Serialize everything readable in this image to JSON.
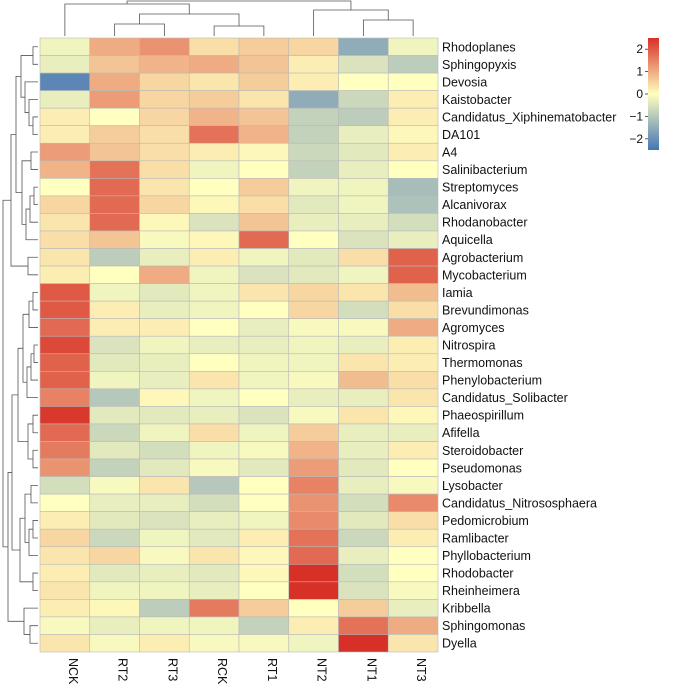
{
  "chart_data": {
    "type": "heatmap",
    "title": "",
    "xlabel": "",
    "ylabel": "",
    "columns": [
      "NCK",
      "RT2",
      "RT3",
      "RCK",
      "RT1",
      "NT2",
      "NT1",
      "NT3"
    ],
    "rows": [
      "Rhodoplanes",
      "Sphingopyxis",
      "Devosia",
      "Kaistobacter",
      "Candidatus_Xiphinematobacter",
      "DA101",
      "A4",
      "Salinibacterium",
      "Streptomyces",
      "Alcanivorax",
      "Rhodanobacter",
      "Aquicella",
      "Agrobacterium",
      "Mycobacterium",
      "Iamia",
      "Brevundimonas",
      "Agromyces",
      "Nitrospira",
      "Thermomonas",
      "Phenylobacterium",
      "Candidatus_Solibacter",
      "Phaeospirillum",
      "Afifella",
      "Steroidobacter",
      "Pseudomonas",
      "Lysobacter",
      "Candidatus_Nitrososphaera",
      "Pedomicrobium",
      "Ramlibacter",
      "Phyllobacterium",
      "Rhodobacter",
      "Rheinheimera",
      "Kribbella",
      "Sphingomonas",
      "Dyella"
    ],
    "values": [
      [
        -0.2,
        1.0,
        1.3,
        0.4,
        0.6,
        0.5,
        -1.5,
        -0.2
      ],
      [
        -0.3,
        0.7,
        0.9,
        1.0,
        0.7,
        0.2,
        -0.5,
        -0.9
      ],
      [
        -2.2,
        1.0,
        0.5,
        0.3,
        0.6,
        0.2,
        0.0,
        0.0
      ],
      [
        -0.3,
        1.2,
        0.5,
        0.6,
        0.3,
        -1.5,
        -0.7,
        0.2
      ],
      [
        0.2,
        0.0,
        0.5,
        0.9,
        0.7,
        -0.8,
        -0.9,
        0.2
      ],
      [
        0.2,
        0.6,
        0.4,
        1.7,
        0.9,
        -0.8,
        -0.3,
        0.1
      ],
      [
        1.2,
        0.7,
        0.4,
        0.2,
        0.1,
        -0.7,
        -0.4,
        0.2
      ],
      [
        0.9,
        1.7,
        0.4,
        -0.2,
        0.0,
        -0.8,
        -0.3,
        0.0
      ],
      [
        0.0,
        1.8,
        0.3,
        0.0,
        0.6,
        -0.2,
        -0.2,
        -1.2
      ],
      [
        0.5,
        1.8,
        0.5,
        0.1,
        0.4,
        -0.4,
        -0.2,
        -1.1
      ],
      [
        0.3,
        1.8,
        0.1,
        -0.5,
        0.7,
        -0.3,
        -0.3,
        -0.6
      ],
      [
        0.4,
        0.7,
        -0.1,
        0.1,
        1.8,
        0.0,
        -0.5,
        -0.3
      ],
      [
        0.3,
        -0.9,
        -0.3,
        0.2,
        -0.2,
        -0.4,
        0.4,
        1.9
      ],
      [
        0.2,
        0.0,
        1.0,
        -0.2,
        -0.5,
        -0.4,
        -0.2,
        1.9
      ],
      [
        2.0,
        -0.2,
        -0.4,
        -0.2,
        0.3,
        0.5,
        0.3,
        0.8
      ],
      [
        2.0,
        0.2,
        -0.3,
        -0.2,
        0.0,
        0.5,
        -0.6,
        0.4
      ],
      [
        1.8,
        0.2,
        0.2,
        0.0,
        -0.3,
        -0.1,
        -0.1,
        1.0
      ],
      [
        2.2,
        -0.5,
        -0.2,
        -0.3,
        -0.3,
        -0.2,
        -0.3,
        0.2
      ],
      [
        1.9,
        -0.4,
        -0.3,
        0.0,
        -0.2,
        -0.2,
        0.3,
        0.2
      ],
      [
        1.9,
        -0.2,
        -0.3,
        0.3,
        -0.2,
        -0.1,
        0.8,
        0.4
      ],
      [
        1.5,
        -1.0,
        0.1,
        -0.2,
        0.0,
        -0.3,
        -0.3,
        0.3
      ],
      [
        2.4,
        -0.4,
        -0.4,
        -0.3,
        -0.5,
        -0.1,
        0.3,
        0.1
      ],
      [
        1.8,
        -0.7,
        -0.2,
        0.4,
        -0.2,
        0.6,
        -0.3,
        -0.3
      ],
      [
        1.6,
        -0.4,
        -0.6,
        -0.2,
        -0.1,
        0.9,
        -0.3,
        0.2
      ],
      [
        1.3,
        -0.8,
        -0.4,
        -0.1,
        -0.4,
        1.2,
        -0.4,
        0.0
      ],
      [
        -0.6,
        -0.1,
        0.3,
        -1.0,
        0.0,
        1.5,
        -0.3,
        -0.1
      ],
      [
        0.0,
        -0.3,
        -0.3,
        -0.6,
        0.0,
        1.3,
        -0.6,
        1.4
      ],
      [
        0.2,
        -0.4,
        -0.5,
        -0.3,
        -0.2,
        1.4,
        -0.4,
        0.4
      ],
      [
        0.5,
        -0.7,
        -0.2,
        -0.4,
        0.2,
        1.7,
        -0.7,
        0.2
      ],
      [
        0.3,
        0.5,
        -0.1,
        0.3,
        0.1,
        1.8,
        -0.3,
        0.0
      ],
      [
        0.2,
        -0.4,
        -0.3,
        -0.4,
        0.1,
        2.6,
        -0.6,
        0.0
      ],
      [
        0.3,
        -0.2,
        -0.2,
        -0.3,
        0.0,
        2.5,
        -0.5,
        -0.1
      ],
      [
        0.2,
        0.1,
        -0.9,
        1.6,
        0.6,
        0.0,
        0.6,
        -0.3
      ],
      [
        -0.1,
        -0.3,
        -0.2,
        -0.2,
        -0.8,
        0.2,
        1.7,
        1.0
      ],
      [
        0.3,
        -0.1,
        0.2,
        -0.1,
        -0.1,
        -0.2,
        2.6,
        0.3
      ]
    ],
    "color_scale": {
      "min": -2.5,
      "max": 2.5,
      "low_color": "#4575b4",
      "mid_color": "#ffffbf",
      "high_color": "#d73027",
      "ticks": [
        2,
        1,
        0,
        -1,
        -2
      ],
      "tick_labels": [
        "2",
        "1",
        "0",
        "−1",
        "−2"
      ]
    },
    "legend_position": "top-right",
    "col_dendrogram": "top",
    "row_dendrogram": "left"
  }
}
